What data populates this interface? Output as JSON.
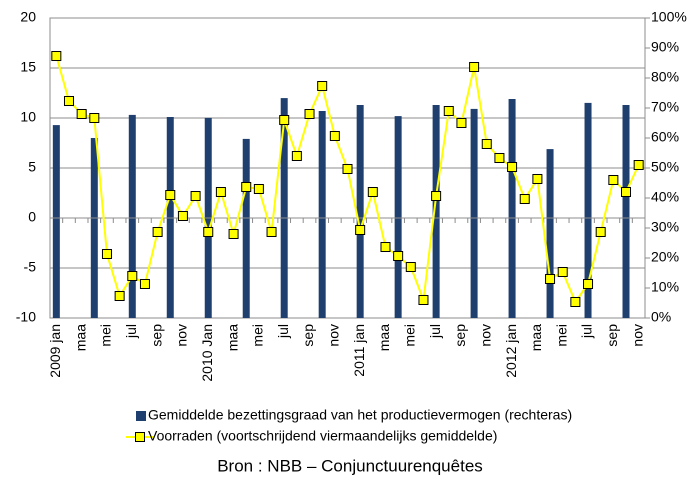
{
  "chart_data": {
    "type": "bar+line",
    "categories": [
      "2009 jan",
      null,
      "maa",
      null,
      "mei",
      null,
      "jul",
      null,
      "sep",
      null,
      "nov",
      null,
      "2010 Jan",
      null,
      "maa",
      null,
      "mei",
      null,
      "jul",
      null,
      "sep",
      null,
      "nov",
      null,
      "2011 jan",
      null,
      "maa",
      null,
      "mei",
      null,
      "jul",
      null,
      "sep",
      null,
      "nov",
      null,
      "2012 jan",
      null,
      "maa",
      null,
      "mei",
      null,
      "jul",
      null,
      "sep",
      null,
      "nov"
    ],
    "series": [
      {
        "name": "Gemiddelde bezettingsgraad van het productievermogen (rechteras)",
        "type": "bar",
        "axis": "y2",
        "color": "#1f3f6f",
        "values": [
          64.3,
          null,
          null,
          60,
          null,
          null,
          67.7,
          null,
          null,
          67,
          null,
          null,
          66.7,
          null,
          null,
          59.7,
          null,
          null,
          73.3,
          null,
          null,
          69,
          null,
          null,
          71,
          null,
          null,
          67.3,
          null,
          null,
          71,
          null,
          null,
          69.7,
          null,
          null,
          73,
          null,
          null,
          56.3,
          null,
          null,
          71.7,
          null,
          null,
          71,
          null
        ]
      },
      {
        "name": "Voorraden (voortschrijdend viermaandelijks gemiddelde)",
        "type": "line",
        "axis": "y",
        "color": "#ffff00",
        "values": [
          16.2,
          11.7,
          10.4,
          10.0,
          -3.6,
          -7.8,
          -5.8,
          -6.6,
          -1.4,
          2.3,
          0.2,
          2.2,
          -1.4,
          2.6,
          -1.6,
          3.1,
          2.9,
          -1.4,
          9.8,
          6.2,
          10.4,
          13.2,
          8.2,
          4.9,
          -1.2,
          2.6,
          -2.9,
          -3.8,
          -4.9,
          -8.2,
          2.2,
          10.7,
          9.5,
          15.1,
          7.4,
          6.0,
          5.1,
          1.9,
          3.9,
          -6.1,
          -5.4,
          -8.4,
          -6.6,
          -1.4,
          3.8,
          2.6,
          5.3
        ]
      }
    ],
    "ylim": [
      -10,
      20
    ],
    "yticks": [
      -10,
      -5,
      0,
      5,
      10,
      15,
      20
    ],
    "y2lim": [
      0,
      100
    ],
    "y2ticks": [
      {
        "value": 0,
        "label": "0%"
      },
      {
        "value": 10,
        "label": "10%"
      },
      {
        "value": 20,
        "label": "20%"
      },
      {
        "value": 30,
        "label": "30%"
      },
      {
        "value": 40,
        "label": "40%"
      },
      {
        "value": 50,
        "label": "50%"
      },
      {
        "value": 60,
        "label": "60%"
      },
      {
        "value": 70,
        "label": "70%"
      },
      {
        "value": 80,
        "label": "80%"
      },
      {
        "value": 90,
        "label": "90%"
      },
      {
        "value": 100,
        "label": "100%"
      }
    ],
    "grid": true,
    "source": "Bron : NBB – Conjunctuurenquêtes"
  }
}
